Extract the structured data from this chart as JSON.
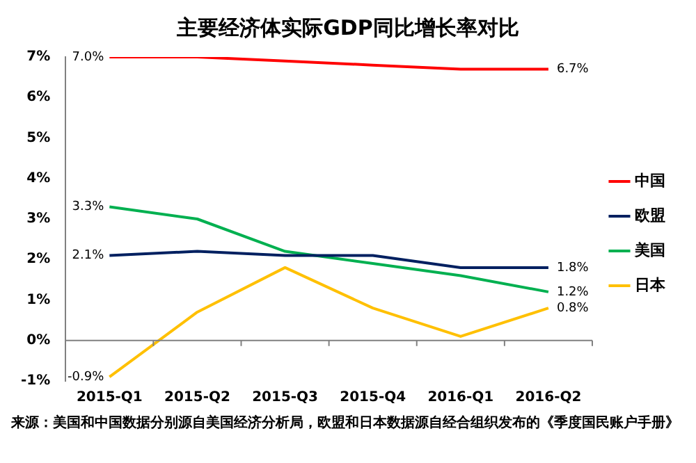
{
  "chart_data": {
    "type": "line",
    "title": "主要经济体实际GDP同比增长率对比",
    "annotations": [
      "来源：美国和中国数据分别源自美国经济分析局，欧盟和日本数据源自经合组织发布的《季度国民账户手册》"
    ],
    "categories": [
      "2015-Q1",
      "2015-Q2",
      "2015-Q3",
      "2015-Q4",
      "2016-Q1",
      "2016-Q2"
    ],
    "series": [
      {
        "name": "中国",
        "color": "#ff0000",
        "values": [
          7.0,
          7.0,
          6.9,
          6.8,
          6.7,
          6.7
        ],
        "value_labels": [
          "7.0%",
          null,
          null,
          null,
          null,
          "6.7%"
        ]
      },
      {
        "name": "欧盟",
        "color": "#002060",
        "values": [
          2.1,
          2.2,
          2.1,
          2.1,
          1.8,
          1.8
        ],
        "value_labels": [
          "2.1%",
          null,
          null,
          null,
          null,
          "1.8%"
        ]
      },
      {
        "name": "美国",
        "color": "#00b050",
        "values": [
          3.3,
          3.0,
          2.2,
          1.9,
          1.6,
          1.2
        ],
        "value_labels": [
          "3.3%",
          null,
          null,
          null,
          null,
          "1.2%"
        ]
      },
      {
        "name": "日本",
        "color": "#ffc000",
        "values": [
          -0.9,
          0.7,
          1.8,
          0.8,
          0.1,
          0.8
        ],
        "value_labels": [
          "-0.9%",
          null,
          null,
          null,
          null,
          "0.8%"
        ]
      }
    ],
    "ylim": [
      -1,
      7
    ],
    "yticks": [
      {
        "value": -1,
        "label": "-1%"
      },
      {
        "value": 0,
        "label": "0%"
      },
      {
        "value": 1,
        "label": "1%"
      },
      {
        "value": 2,
        "label": "2%"
      },
      {
        "value": 3,
        "label": "3%"
      },
      {
        "value": 4,
        "label": "4%"
      },
      {
        "value": 5,
        "label": "5%"
      },
      {
        "value": 6,
        "label": "6%"
      },
      {
        "value": 7,
        "label": "7%"
      }
    ],
    "legend": "right",
    "marker": "none",
    "line_style": "solid"
  }
}
